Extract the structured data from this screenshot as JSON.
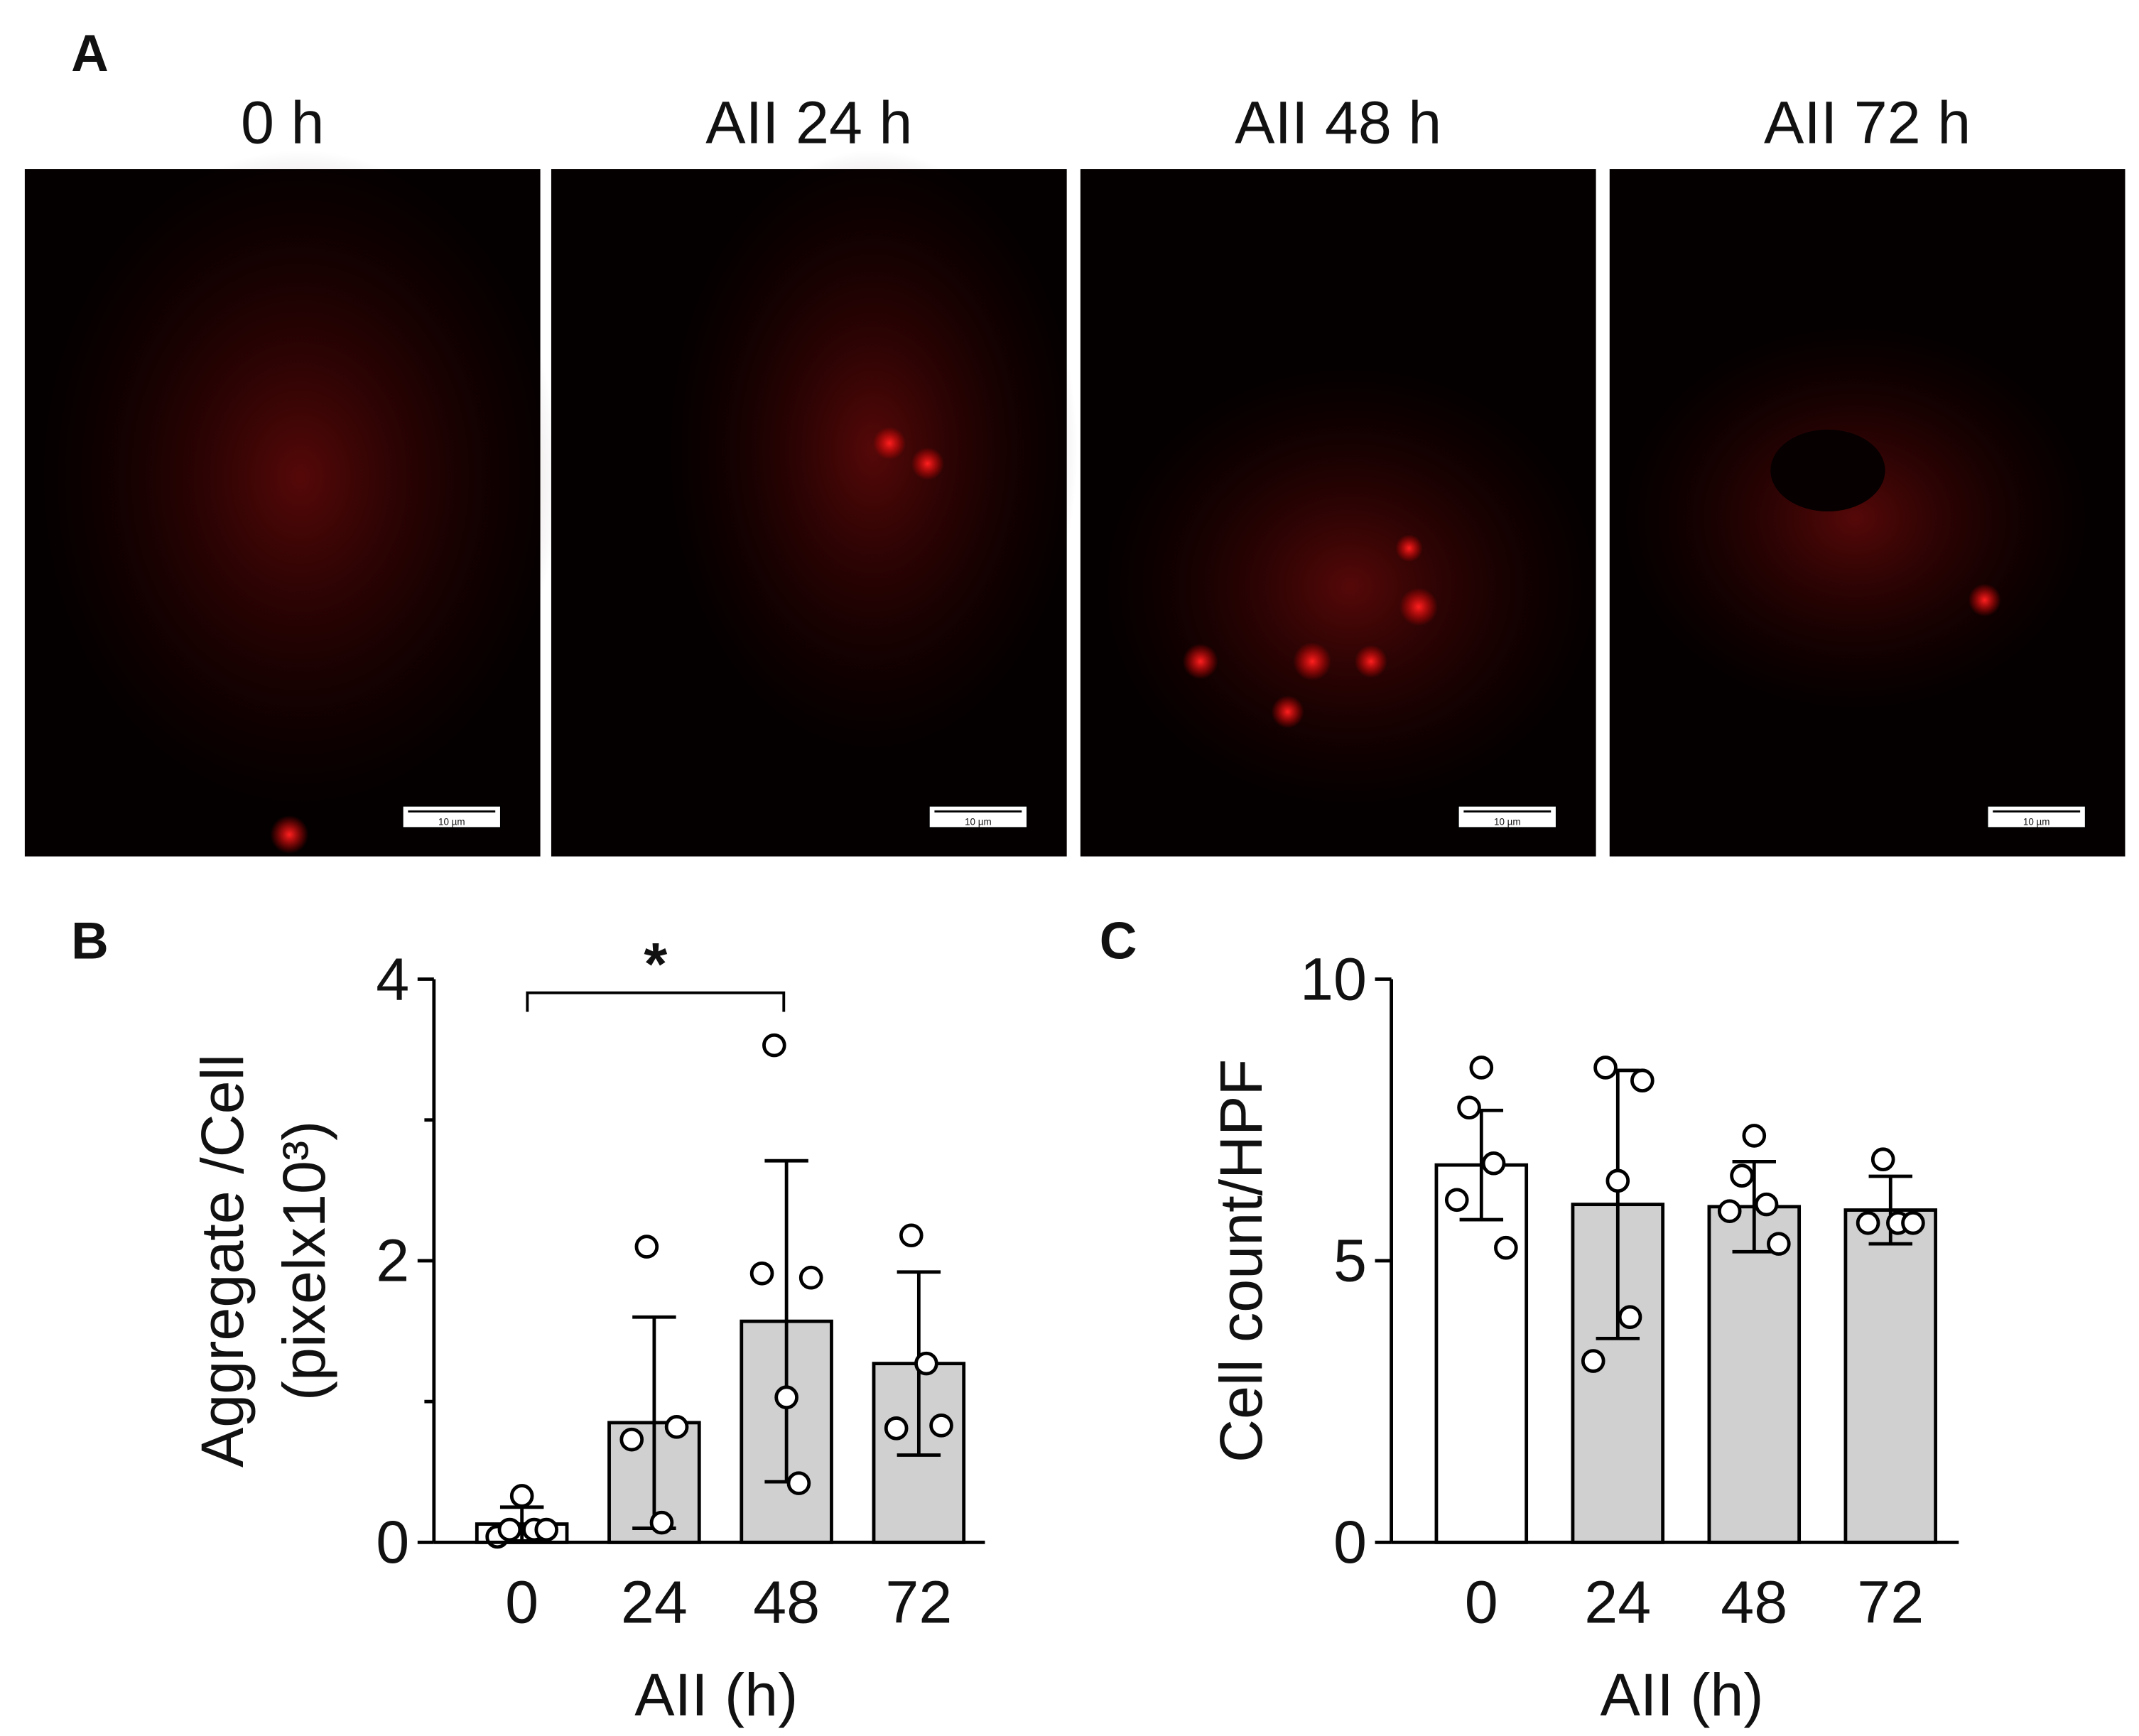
{
  "panel_a": {
    "label": "A",
    "images": [
      {
        "title": "0 h",
        "scale_bar": "10 µm"
      },
      {
        "title": "AII 24 h",
        "scale_bar": "10 µm"
      },
      {
        "title": "AII 48 h",
        "scale_bar": "10 µm"
      },
      {
        "title": "AII 72 h",
        "scale_bar": "10 µm"
      }
    ]
  },
  "chart_data": [
    {
      "type": "bar",
      "panel_label": "B",
      "xlabel": "AII (h)",
      "ylabel": [
        "Aggregate /Cell",
        "(pixelx10³)"
      ],
      "categories": [
        "0",
        "24",
        "48",
        "72"
      ],
      "values": [
        0.13,
        0.85,
        1.57,
        1.27
      ],
      "errors": [
        0.12,
        0.75,
        1.14,
        0.65
      ],
      "colors": [
        "#ffffff",
        "#d0d0d0",
        "#d0d0d0",
        "#d0d0d0"
      ],
      "points": [
        [
          0.04,
          0.09,
          0.33,
          0.09,
          0.09
        ],
        [
          0.73,
          2.1,
          0.14,
          0.82
        ],
        [
          1.91,
          3.53,
          1.03,
          0.42,
          1.88
        ],
        [
          0.81,
          2.18,
          1.27,
          0.83
        ]
      ],
      "ylim": [
        0,
        4
      ],
      "yticks": [
        0,
        2,
        4
      ],
      "minor_yticks": [
        1,
        3
      ],
      "significance": {
        "from": 0,
        "to": 2,
        "label": "*"
      }
    },
    {
      "type": "bar",
      "panel_label": "C",
      "xlabel": "AII (h)",
      "ylabel": [
        "Cell count/HPF"
      ],
      "categories": [
        "0",
        "24",
        "48",
        "72"
      ],
      "values": [
        6.7,
        6.0,
        5.96,
        5.9
      ],
      "errors": [
        0.97,
        2.38,
        0.8,
        0.6
      ],
      "colors": [
        "#ffffff",
        "#d0d0d0",
        "#d0d0d0",
        "#d0d0d0"
      ],
      "points": [
        [
          6.08,
          7.72,
          8.43,
          6.73,
          5.23
        ],
        [
          3.22,
          8.43,
          6.42,
          4.0,
          8.2
        ],
        [
          5.88,
          6.51,
          7.22,
          6.0,
          5.3
        ],
        [
          5.67,
          6.8,
          5.67,
          5.67
        ]
      ],
      "ylim": [
        0,
        10
      ],
      "yticks": [
        0,
        5,
        10
      ]
    }
  ]
}
